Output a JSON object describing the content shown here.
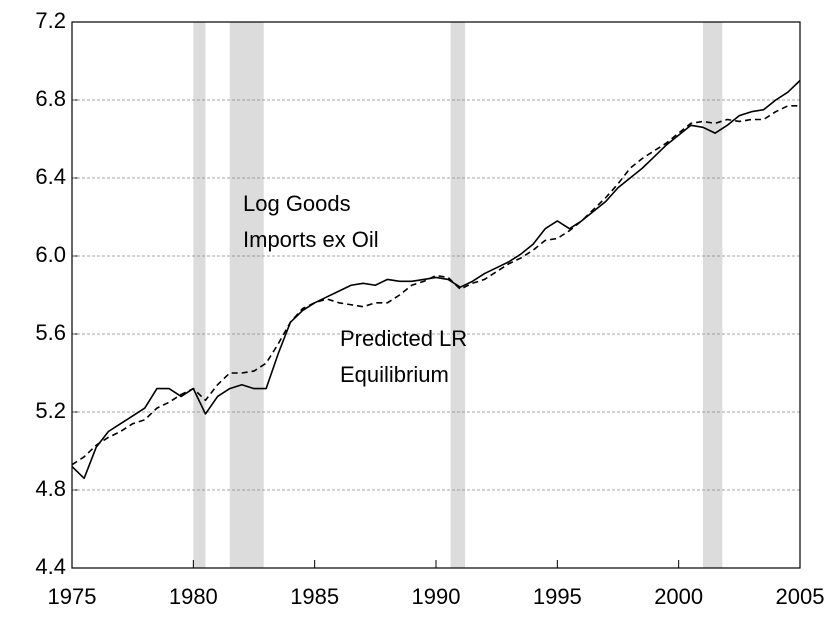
{
  "chart_data": {
    "type": "line",
    "x": [
      1975,
      1975.5,
      1976,
      1976.5,
      1977,
      1977.5,
      1978,
      1978.5,
      1979,
      1979.5,
      1980,
      1980.5,
      1981,
      1981.5,
      1982,
      1982.5,
      1983,
      1983.5,
      1984,
      1984.5,
      1985,
      1985.5,
      1986,
      1986.5,
      1987,
      1987.5,
      1988,
      1988.5,
      1989,
      1989.5,
      1990,
      1990.5,
      1991,
      1991.5,
      1992,
      1992.5,
      1993,
      1993.5,
      1994,
      1994.5,
      1995,
      1995.5,
      1996,
      1996.5,
      1997,
      1997.5,
      1998,
      1998.5,
      1999,
      1999.5,
      2000,
      2000.5,
      2001,
      2001.5,
      2002,
      2002.5,
      2003,
      2003.5,
      2004,
      2004.5,
      2005
    ],
    "series": [
      {
        "color": "#000000",
        "dash": false,
        "values": [
          4.92,
          4.86,
          5.02,
          5.1,
          5.14,
          5.18,
          5.22,
          5.32,
          5.32,
          5.28,
          5.32,
          5.19,
          5.28,
          5.32,
          5.34,
          5.32,
          5.32,
          5.5,
          5.66,
          5.72,
          5.76,
          5.79,
          5.82,
          5.85,
          5.86,
          5.85,
          5.88,
          5.87,
          5.87,
          5.88,
          5.89,
          5.88,
          5.84,
          5.87,
          5.91,
          5.94,
          5.97,
          6.01,
          6.06,
          6.14,
          6.18,
          6.14,
          6.18,
          6.23,
          6.28,
          6.35,
          6.4,
          6.45,
          6.51,
          6.57,
          6.62,
          6.67,
          6.66,
          6.63,
          6.67,
          6.72,
          6.74,
          6.75,
          6.8,
          6.84,
          6.9
        ]
      },
      {
        "color": "#000000",
        "dash": true,
        "values": [
          4.93,
          4.97,
          5.03,
          5.07,
          5.1,
          5.14,
          5.16,
          5.22,
          5.25,
          5.29,
          5.32,
          5.26,
          5.34,
          5.4,
          5.4,
          5.41,
          5.45,
          5.55,
          5.66,
          5.73,
          5.76,
          5.78,
          5.76,
          5.75,
          5.74,
          5.76,
          5.76,
          5.8,
          5.85,
          5.87,
          5.9,
          5.89,
          5.83,
          5.86,
          5.88,
          5.92,
          5.96,
          5.99,
          6.03,
          6.08,
          6.09,
          6.13,
          6.18,
          6.24,
          6.3,
          6.37,
          6.45,
          6.5,
          6.54,
          6.58,
          6.63,
          6.68,
          6.69,
          6.68,
          6.7,
          6.69,
          6.7,
          6.7,
          6.74,
          6.77,
          6.77
        ]
      }
    ],
    "recessions": [
      [
        1980.0,
        1980.5
      ],
      [
        1981.5,
        1982.9
      ],
      [
        1990.6,
        1991.2
      ],
      [
        2001.0,
        2001.8
      ]
    ],
    "recession_color": "#dcdcdc",
    "annotations": [
      [
        "Log Goods",
        "Imports ex Oil"
      ],
      [
        "Predicted LR",
        "Equilibrium"
      ]
    ],
    "xlim": [
      1975,
      2005
    ],
    "xticks": [
      1975,
      1980,
      1985,
      1990,
      1995,
      2000,
      2005
    ],
    "ylim": [
      4.4,
      7.2
    ],
    "yticks": [
      4.4,
      4.8,
      5.2,
      5.6,
      {
        "value": 6,
        "label": "6.0"
      },
      6.4,
      6.8,
      7.2
    ],
    "grid": true
  }
}
